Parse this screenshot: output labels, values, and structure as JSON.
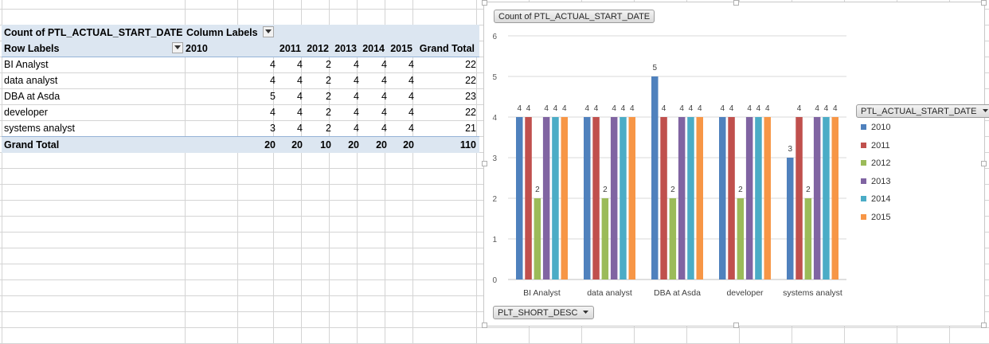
{
  "pivot": {
    "corner_label": "Count of PTL_ACTUAL_START_DATE",
    "column_labels": "Column Labels",
    "row_labels": "Row Labels",
    "years": [
      "2010",
      "2011",
      "2012",
      "2013",
      "2014",
      "2015"
    ],
    "grand_total_label": "Grand Total",
    "rows": [
      {
        "label": "BI Analyst",
        "values": [
          "4",
          "4",
          "2",
          "4",
          "4",
          "4"
        ],
        "total": "22"
      },
      {
        "label": "data analyst",
        "values": [
          "4",
          "4",
          "2",
          "4",
          "4",
          "4"
        ],
        "total": "22"
      },
      {
        "label": "DBA at Asda",
        "values": [
          "5",
          "4",
          "2",
          "4",
          "4",
          "4"
        ],
        "total": "23"
      },
      {
        "label": "developer",
        "values": [
          "4",
          "4",
          "2",
          "4",
          "4",
          "4"
        ],
        "total": "22"
      },
      {
        "label": "systems analyst",
        "values": [
          "3",
          "4",
          "2",
          "4",
          "4",
          "4"
        ],
        "total": "21"
      }
    ],
    "grand_total_row": {
      "label": "Grand Total",
      "values": [
        "20",
        "20",
        "10",
        "20",
        "20",
        "20"
      ],
      "total": "110"
    }
  },
  "chart": {
    "value_field_button": "Count of PTL_ACTUAL_START_DATE",
    "axis_field_button": "PLT_SHORT_DESC",
    "legend_field_button": "PTL_ACTUAL_START_DATE",
    "y_ticks": [
      "6",
      "5",
      "4",
      "3",
      "2",
      "1",
      "0"
    ]
  },
  "chart_data": {
    "type": "bar",
    "categories": [
      "BI Analyst",
      "data analyst",
      "DBA at Asda",
      "developer",
      "systems analyst"
    ],
    "series": [
      {
        "name": "2010",
        "color": "#4f81bd",
        "values": [
          4,
          4,
          5,
          4,
          3
        ]
      },
      {
        "name": "2011",
        "color": "#c0504d",
        "values": [
          4,
          4,
          4,
          4,
          4
        ]
      },
      {
        "name": "2012",
        "color": "#9bbb59",
        "values": [
          2,
          2,
          2,
          2,
          2
        ]
      },
      {
        "name": "2013",
        "color": "#8064a2",
        "values": [
          4,
          4,
          4,
          4,
          4
        ]
      },
      {
        "name": "2014",
        "color": "#4bacc6",
        "values": [
          4,
          4,
          4,
          4,
          4
        ]
      },
      {
        "name": "2015",
        "color": "#f79646",
        "values": [
          4,
          4,
          4,
          4,
          4
        ]
      }
    ],
    "ylim": [
      0,
      6
    ],
    "grid": true,
    "legend": "right",
    "data_labels": true
  }
}
